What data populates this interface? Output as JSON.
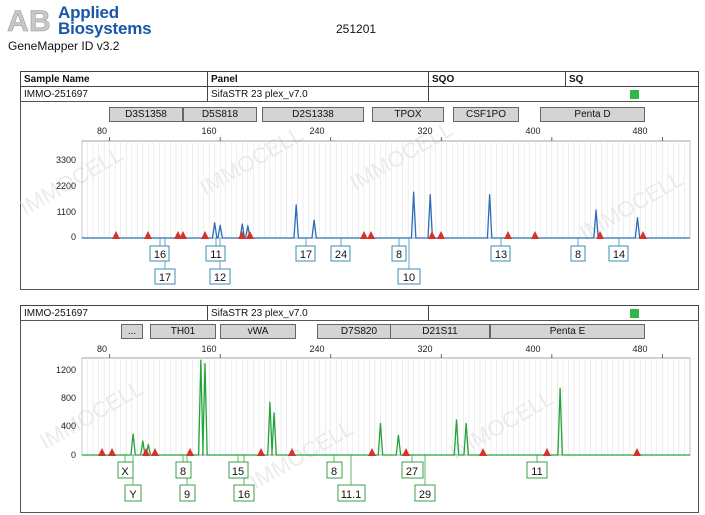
{
  "header": {
    "brand_line1": "Applied",
    "brand_line2": "Biosystems",
    "software": "GeneMapper ID v3.2",
    "run_id": "251201"
  },
  "table_header": {
    "col_sample": "Sample Name",
    "col_panel": "Panel",
    "col_sqo": "SQO",
    "col_sq": "SQ"
  },
  "panels": [
    {
      "sample_name": "IMMO-251697",
      "panel_name": "SifaSTR 23 plex_v7.0",
      "sq_color": "#2fb84a",
      "markers": [
        "D3S1358",
        "D5S818",
        "D2S1338",
        "TPOX",
        "CSF1PO",
        "Penta D"
      ],
      "x_ticks": [
        "80",
        "160",
        "240",
        "320",
        "400",
        "480"
      ],
      "y_ticks": [
        "3300",
        "2200",
        "1100",
        "0"
      ],
      "alleles_top": [
        "16",
        "11",
        "17",
        "24",
        "8",
        "13",
        "8",
        "14"
      ],
      "alleles_bottom": [
        "17",
        "12",
        "10"
      ]
    },
    {
      "sample_name": "IMMO-251697",
      "panel_name": "SifaSTR 23 plex_v7.0",
      "sq_color": "#2fb84a",
      "markers": [
        "...",
        "TH01",
        "vWA",
        "D7S820",
        "D21S11",
        "Penta E"
      ],
      "x_ticks": [
        "80",
        "160",
        "240",
        "320",
        "400",
        "480"
      ],
      "y_ticks": [
        "1200",
        "800",
        "400",
        "0"
      ],
      "alleles_top": [
        "X",
        "8",
        "15",
        "8",
        "27",
        "11"
      ],
      "alleles_bottom": [
        "Y",
        "9",
        "16",
        "11.1",
        "29"
      ]
    }
  ],
  "watermark": "IMMOCELL",
  "chart_data": [
    {
      "type": "line",
      "dye": "blue",
      "x_range": [
        60,
        500
      ],
      "y_range": [
        0,
        4000
      ],
      "peaks": [
        [
          156,
          600
        ],
        [
          160,
          500
        ],
        [
          176,
          550
        ],
        [
          180,
          480
        ],
        [
          215,
          1300
        ],
        [
          228,
          700
        ],
        [
          300,
          1800
        ],
        [
          312,
          1700
        ],
        [
          355,
          1700
        ],
        [
          432,
          1100
        ],
        [
          462,
          800
        ]
      ],
      "markers": [
        "D3S1358",
        "D5S818",
        "D2S1338",
        "TPOX",
        "CSF1PO",
        "Penta D"
      ],
      "alleles": [
        "16",
        "17",
        "11",
        "12",
        "17",
        "24",
        "8",
        "10",
        "13",
        "8",
        "14"
      ]
    },
    {
      "type": "line",
      "dye": "green",
      "x_range": [
        60,
        500
      ],
      "y_range": [
        0,
        1400
      ],
      "peaks": [
        [
          97,
          300
        ],
        [
          104,
          200
        ],
        [
          108,
          150
        ],
        [
          146,
          1350
        ],
        [
          149,
          1300
        ],
        [
          196,
          750
        ],
        [
          199,
          600
        ],
        [
          276,
          450
        ],
        [
          289,
          280
        ],
        [
          331,
          500
        ],
        [
          338,
          450
        ],
        [
          406,
          950
        ]
      ],
      "markers": [
        "TH01",
        "vWA",
        "D7S820",
        "D21S11",
        "Penta E"
      ],
      "alleles": [
        "X",
        "Y",
        "8",
        "9",
        "15",
        "16",
        "8",
        "11.1",
        "27",
        "29",
        "11"
      ]
    }
  ]
}
